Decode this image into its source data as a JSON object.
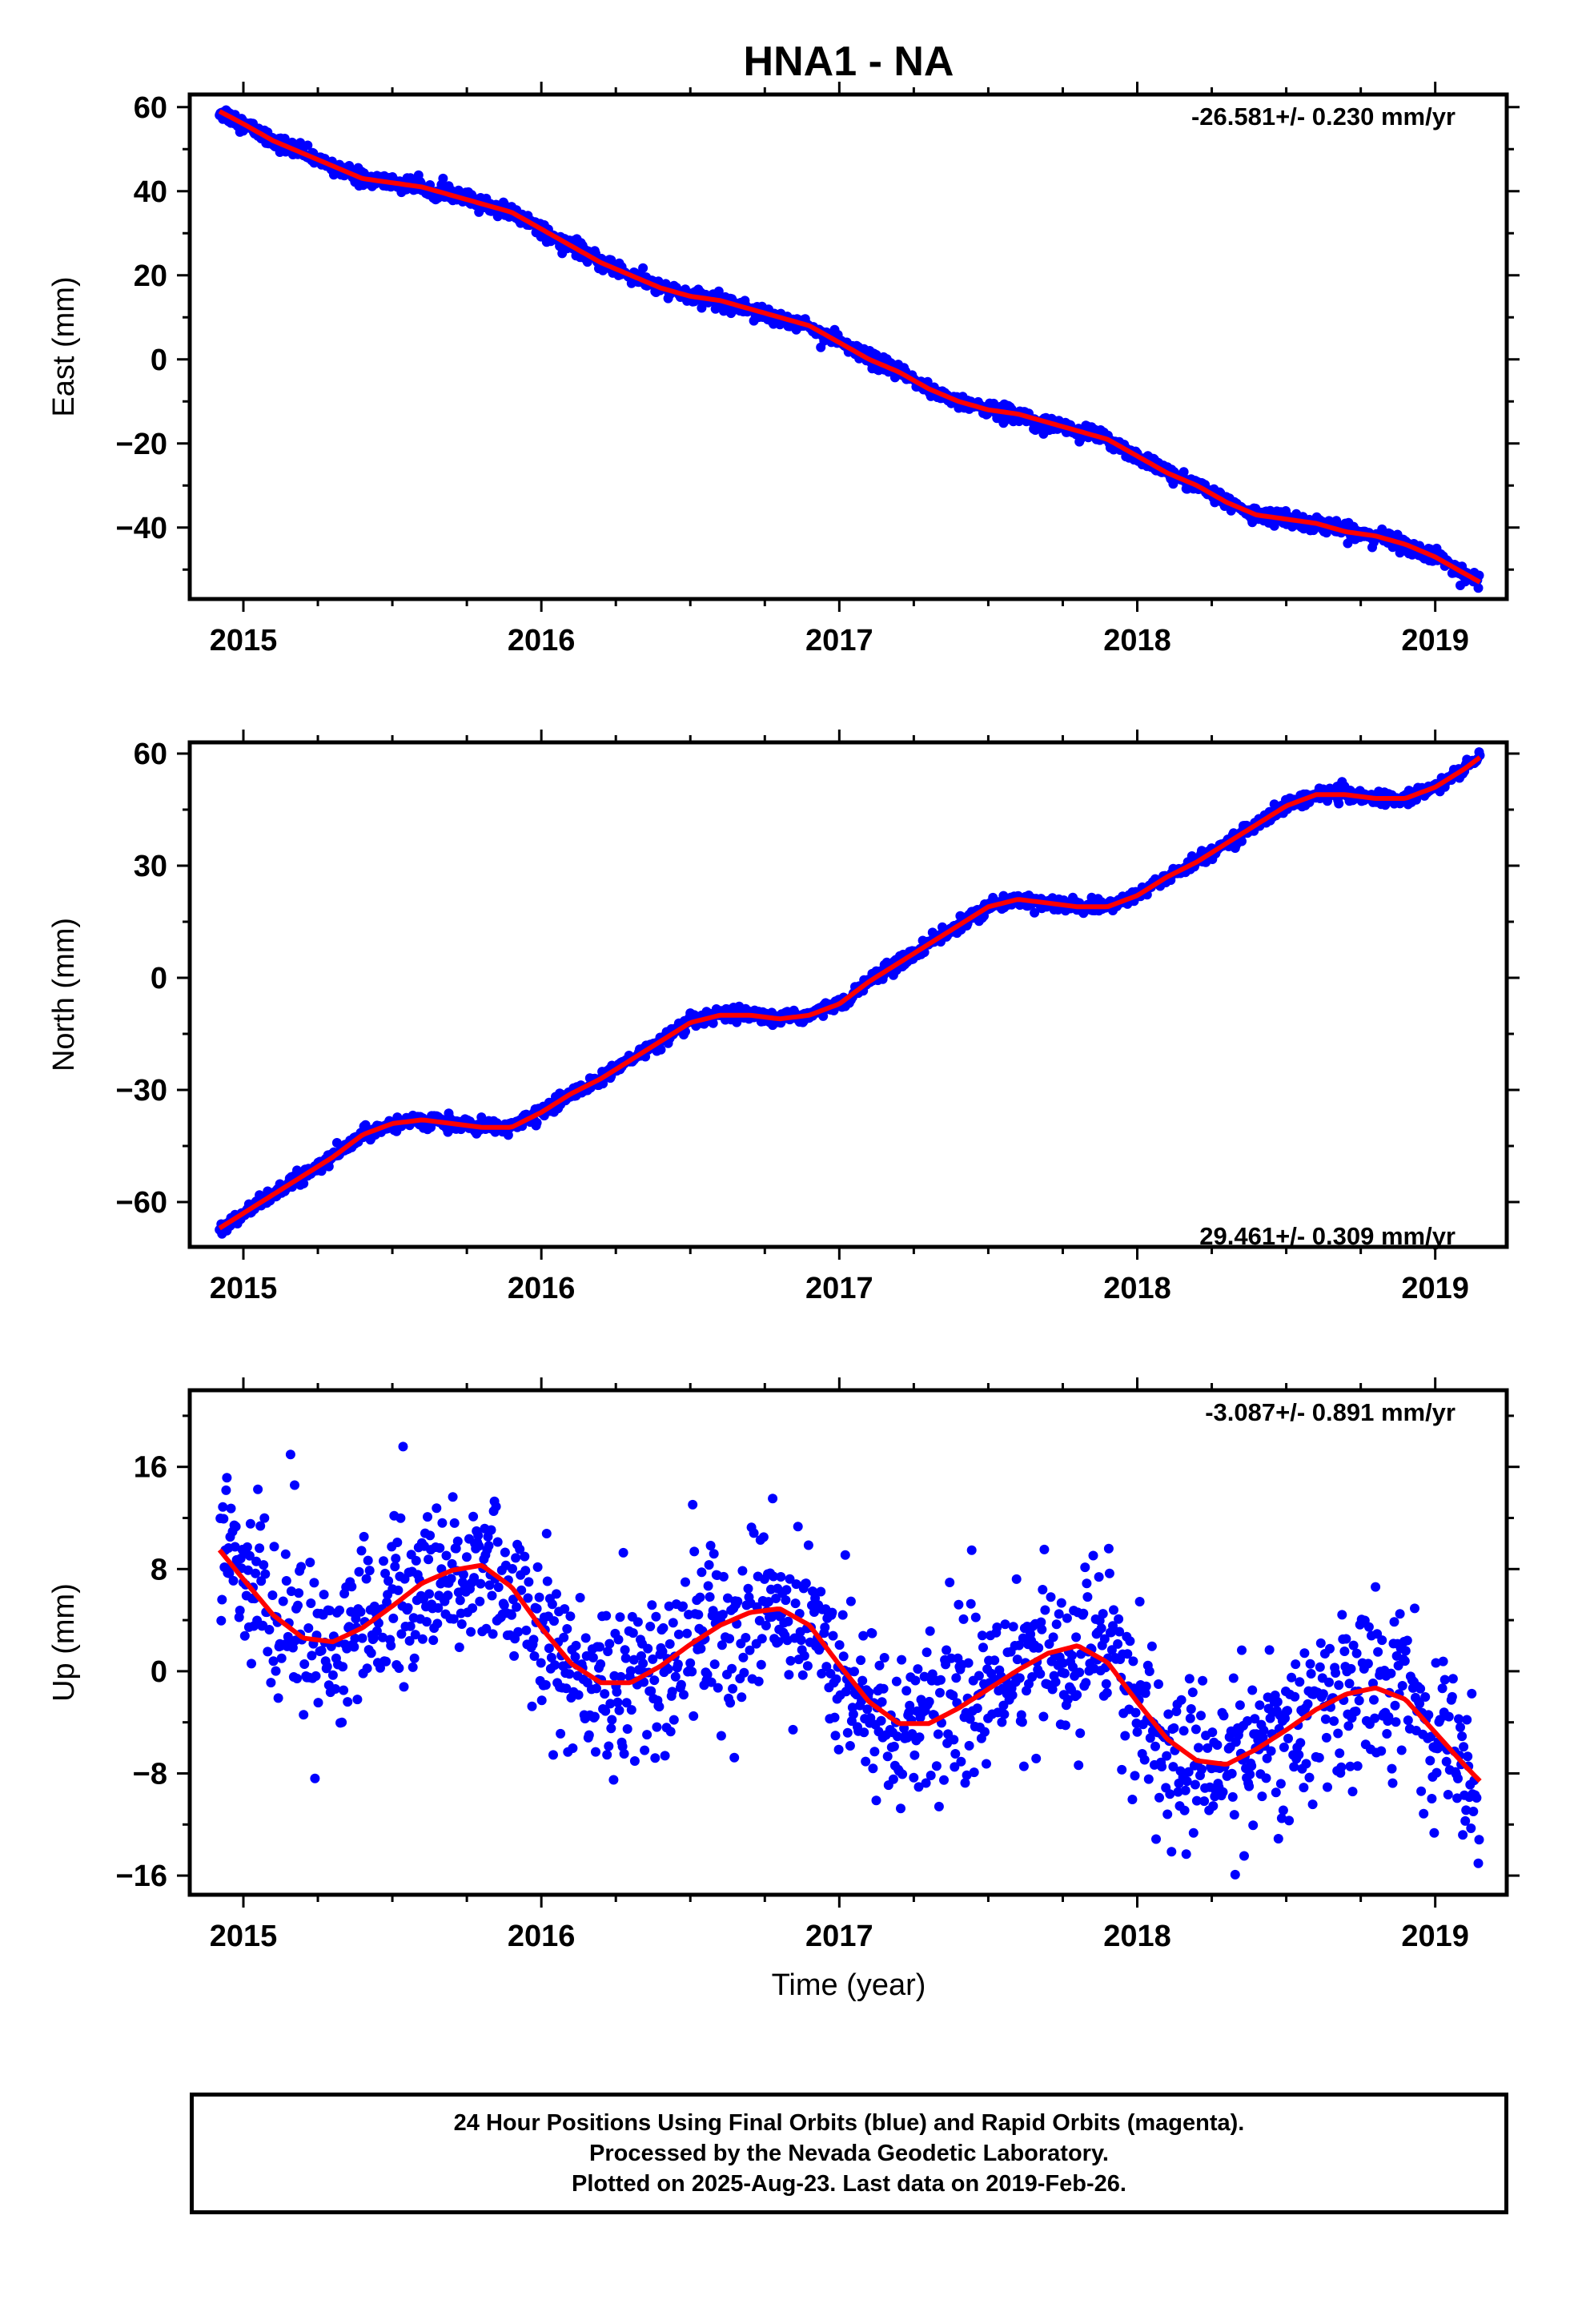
{
  "title": "HNA1 - NA",
  "xlabel": "Time (year)",
  "caption": {
    "line1": "24 Hour Positions Using Final Orbits (blue) and Rapid Orbits (magenta).",
    "line2": "Processed by the Nevada Geodetic Laboratory.",
    "line3": "Plotted on 2025-Aug-23. Last data on 2019-Feb-26."
  },
  "colors": {
    "points": "#0000ff",
    "fit": "#ff0000",
    "frame": "#000000"
  },
  "chart_data": [
    {
      "type": "scatter",
      "component": "east",
      "ylabel": "East (mm)",
      "velocity": "-26.581+/- 0.230 mm/yr",
      "xlim": [
        2014.82,
        2019.24
      ],
      "ylim": [
        -57,
        63
      ],
      "xticks": [
        2015,
        2016,
        2017,
        2018,
        2019
      ],
      "yticks": [
        -40,
        -20,
        0,
        20,
        40,
        60
      ],
      "series": [
        {
          "x": [
            2014.92,
            2015.0,
            2015.1,
            2015.2,
            2015.3,
            2015.4,
            2015.5,
            2015.6,
            2015.7,
            2015.8,
            2015.9,
            2016.0,
            2016.1,
            2016.2,
            2016.3,
            2016.4,
            2016.5,
            2016.6,
            2016.7,
            2016.8,
            2016.9,
            2017.0,
            2017.1,
            2017.2,
            2017.3,
            2017.4,
            2017.5,
            2017.6,
            2017.7,
            2017.8,
            2017.9,
            2018.0,
            2018.1,
            2018.2,
            2018.3,
            2018.4,
            2018.5,
            2018.6,
            2018.7,
            2018.8,
            2018.9,
            2019.0,
            2019.1,
            2019.15
          ],
          "y": [
            59,
            56,
            52,
            49,
            46,
            43,
            42,
            41,
            39,
            37,
            35,
            31,
            27,
            23,
            20,
            17,
            15,
            14,
            12,
            10,
            8,
            4,
            0,
            -3,
            -7,
            -10,
            -12,
            -13,
            -15,
            -17,
            -19,
            -23,
            -27,
            -30,
            -34,
            -37,
            -38,
            -39,
            -41,
            -42,
            -44,
            -47,
            -51,
            -53
          ]
        }
      ]
    },
    {
      "type": "scatter",
      "component": "north",
      "ylabel": "North (mm)",
      "velocity": "29.461+/- 0.309 mm/yr",
      "xlim": [
        2014.82,
        2019.24
      ],
      "ylim": [
        -72,
        63
      ],
      "xticks": [
        2015,
        2016,
        2017,
        2018,
        2019
      ],
      "yticks": [
        -60,
        -30,
        0,
        30,
        60
      ],
      "series": [
        {
          "x": [
            2014.92,
            2015.0,
            2015.1,
            2015.2,
            2015.3,
            2015.4,
            2015.5,
            2015.6,
            2015.7,
            2015.8,
            2015.9,
            2016.0,
            2016.1,
            2016.2,
            2016.3,
            2016.4,
            2016.5,
            2016.6,
            2016.7,
            2016.8,
            2016.9,
            2017.0,
            2017.1,
            2017.2,
            2017.3,
            2017.4,
            2017.5,
            2017.6,
            2017.7,
            2017.8,
            2017.9,
            2018.0,
            2018.1,
            2018.2,
            2018.3,
            2018.4,
            2018.5,
            2018.6,
            2018.7,
            2018.8,
            2018.9,
            2019.0,
            2019.1,
            2019.15
          ],
          "y": [
            -67,
            -63,
            -58,
            -53,
            -48,
            -42,
            -39,
            -38,
            -39,
            -40,
            -40,
            -36,
            -31,
            -27,
            -22,
            -17,
            -12,
            -10,
            -10,
            -11,
            -10,
            -7,
            -1,
            4,
            9,
            14,
            19,
            21,
            20,
            19,
            19,
            22,
            27,
            31,
            36,
            41,
            46,
            49,
            49,
            48,
            48,
            51,
            56,
            59
          ]
        }
      ]
    },
    {
      "type": "scatter",
      "component": "up",
      "ylabel": "Up (mm)",
      "velocity": "-3.087+/- 0.891 mm/yr",
      "xlim": [
        2014.82,
        2019.24
      ],
      "ylim": [
        -17.5,
        22
      ],
      "xticks": [
        2015,
        2016,
        2017,
        2018,
        2019
      ],
      "yticks": [
        -16,
        -8,
        0,
        8,
        16
      ],
      "series": [
        {
          "x": [
            2014.92,
            2015.0,
            2015.1,
            2015.2,
            2015.3,
            2015.4,
            2015.5,
            2015.6,
            2015.7,
            2015.8,
            2015.9,
            2016.0,
            2016.1,
            2016.2,
            2016.3,
            2016.4,
            2016.5,
            2016.6,
            2016.7,
            2016.8,
            2016.9,
            2017.0,
            2017.1,
            2017.2,
            2017.3,
            2017.4,
            2017.5,
            2017.6,
            2017.7,
            2017.8,
            2017.9,
            2018.0,
            2018.1,
            2018.2,
            2018.3,
            2018.4,
            2018.5,
            2018.6,
            2018.7,
            2018.8,
            2018.9,
            2019.0,
            2019.1,
            2019.15
          ],
          "y": [
            9.5,
            7.2,
            4.4,
            2.6,
            2.3,
            3.4,
            5.1,
            6.9,
            7.9,
            8.3,
            6.6,
            3.4,
            0.6,
            -0.9,
            -0.9,
            0.4,
            2.1,
            3.6,
            4.6,
            4.9,
            3.6,
            0.5,
            -2.4,
            -4.1,
            -4.1,
            -2.9,
            -1.4,
            0.1,
            1.4,
            2.0,
            0.7,
            -2.4,
            -5.3,
            -7.0,
            -7.3,
            -6.1,
            -4.6,
            -3.0,
            -1.8,
            -1.3,
            -2.2,
            -4.8,
            -7.4,
            -8.6
          ]
        }
      ]
    }
  ]
}
